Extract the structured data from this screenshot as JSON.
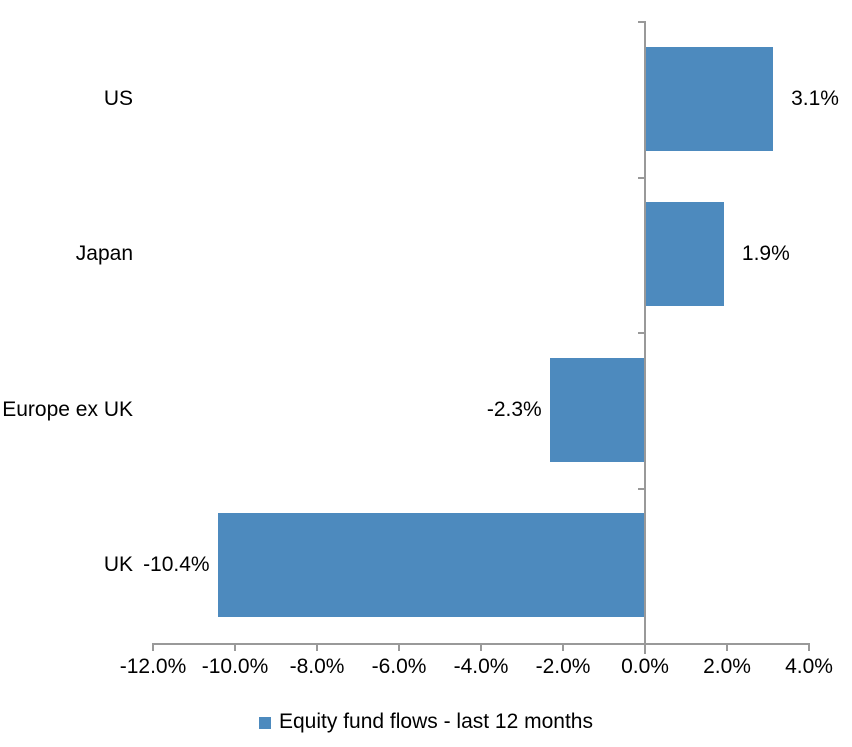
{
  "chart_data": {
    "type": "bar",
    "orientation": "horizontal",
    "categories": [
      "US",
      "Japan",
      "Europe ex UK",
      "UK"
    ],
    "series": [
      {
        "name": "Equity fund flows - last 12 months",
        "values": [
          3.1,
          1.9,
          -2.3,
          -10.4
        ],
        "data_labels": [
          "3.1%",
          "1.9%",
          "-2.3%",
          "-10.4%"
        ],
        "color": "#4D8ABE"
      }
    ],
    "x_axis": {
      "min": -12,
      "max": 4,
      "step": 2,
      "unit": "%",
      "tick_labels": [
        "-12.0%",
        "-10.0%",
        "-8.0%",
        "-6.0%",
        "-4.0%",
        "-2.0%",
        "0.0%",
        "2.0%",
        "4.0%"
      ],
      "line_color": "#999999"
    },
    "legend": {
      "position": "bottom",
      "entries": [
        {
          "label": "Equity fund flows - last 12 months",
          "swatch_color": "#4D8ABE"
        }
      ]
    },
    "grid": false,
    "text_color": "#000000",
    "background_color": "#FFFFFF"
  }
}
